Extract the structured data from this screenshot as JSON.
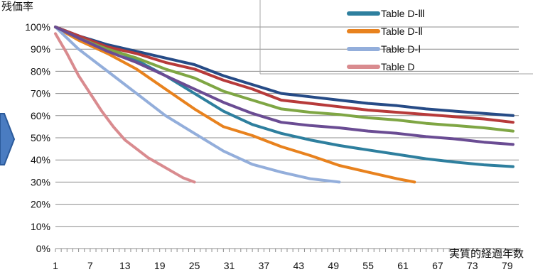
{
  "chart_data": {
    "type": "line",
    "ylabel": "残価率",
    "xlabel": "実質的経過年数",
    "ylim": [
      0,
      100
    ],
    "yticks": [
      0,
      10,
      20,
      30,
      40,
      50,
      60,
      70,
      80,
      90,
      100
    ],
    "ytick_labels": [
      "0%",
      "10%",
      "20%",
      "30%",
      "40%",
      "50%",
      "60%",
      "70%",
      "80%",
      "90%",
      "100%"
    ],
    "xlim": [
      1,
      81
    ],
    "xticks": [
      1,
      7,
      13,
      19,
      25,
      31,
      37,
      43,
      49,
      55,
      61,
      67,
      73,
      79
    ],
    "xtick_labels": [
      "1",
      "7",
      "13",
      "19",
      "25",
      "31",
      "37",
      "43",
      "49",
      "55",
      "61",
      "67",
      "73",
      "79"
    ],
    "grid": true,
    "legend_position": "top-right",
    "legend_order": [
      0,
      1,
      2,
      3
    ],
    "series": [
      {
        "name": "Table D-Ⅲ",
        "color": "#2e7f9e",
        "x": [
          1,
          5,
          10,
          15,
          20,
          25,
          30,
          35,
          40,
          45,
          50,
          55,
          60,
          65,
          70,
          75,
          80
        ],
        "values": [
          100,
          96,
          91,
          85,
          78,
          70,
          62,
          56,
          52,
          49,
          46.5,
          44.5,
          42.5,
          40.5,
          39,
          37.8,
          37
        ]
      },
      {
        "name": "Table D-Ⅱ",
        "color": "#e8821e",
        "x": [
          1,
          5,
          10,
          15,
          20,
          25,
          30,
          35,
          40,
          45,
          50,
          55,
          60,
          63
        ],
        "values": [
          100,
          94,
          88,
          81,
          72,
          63,
          55,
          51,
          46,
          42,
          37.5,
          34.5,
          31.5,
          30
        ]
      },
      {
        "name": "Table D-Ⅰ",
        "color": "#93aedb",
        "x": [
          1,
          5,
          10,
          15,
          20,
          25,
          30,
          35,
          40,
          45,
          50
        ],
        "values": [
          100,
          90,
          80,
          70,
          60,
          52,
          44,
          38,
          34.5,
          31.5,
          30
        ]
      },
      {
        "name": "Table D",
        "color": "#d98b8f",
        "x": [
          1,
          3,
          5,
          7,
          9,
          11,
          13,
          15,
          17,
          19,
          21,
          23,
          25
        ],
        "values": [
          97,
          88,
          78,
          70,
          62,
          55,
          49,
          45,
          41,
          38,
          35,
          32,
          30
        ]
      },
      {
        "name": "",
        "color": "#264b86",
        "x": [
          1,
          5,
          10,
          15,
          20,
          25,
          30,
          35,
          40,
          45,
          50,
          55,
          60,
          65,
          70,
          75,
          80
        ],
        "values": [
          100,
          96,
          92,
          89,
          86,
          83,
          78,
          74,
          70,
          68.5,
          67,
          65.5,
          64.5,
          63,
          62,
          61,
          60
        ]
      },
      {
        "name": "",
        "color": "#b73a3a",
        "x": [
          1,
          5,
          10,
          15,
          20,
          25,
          30,
          35,
          40,
          45,
          50,
          55,
          60,
          65,
          70,
          75,
          80
        ],
        "values": [
          100,
          96,
          91,
          88,
          84,
          81,
          76,
          72,
          67,
          65.5,
          64,
          62.5,
          61.5,
          60.5,
          59.5,
          58.5,
          57
        ]
      },
      {
        "name": "",
        "color": "#7fa644",
        "x": [
          1,
          5,
          10,
          15,
          20,
          25,
          30,
          35,
          40,
          45,
          50,
          55,
          60,
          65,
          70,
          75,
          80
        ],
        "values": [
          100,
          95,
          90,
          86,
          81,
          77,
          71,
          67,
          63,
          61.5,
          60.5,
          59,
          58,
          56.5,
          55.5,
          54.5,
          53
        ]
      },
      {
        "name": "",
        "color": "#6a4c93",
        "x": [
          1,
          5,
          10,
          15,
          20,
          25,
          30,
          35,
          40,
          45,
          50,
          55,
          60,
          65,
          70,
          75,
          80
        ],
        "values": [
          100,
          95,
          89,
          84,
          78,
          72,
          66,
          61,
          57,
          55.5,
          54.5,
          53,
          52,
          50.5,
          49.5,
          48,
          47
        ]
      }
    ]
  }
}
